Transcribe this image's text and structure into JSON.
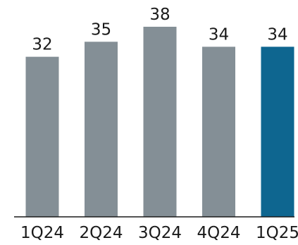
{
  "chart_data": {
    "type": "bar",
    "categories": [
      "1Q24",
      "2Q24",
      "3Q24",
      "4Q24",
      "1Q25"
    ],
    "values": [
      32,
      35,
      38,
      34,
      34
    ],
    "data_labels": [
      "32",
      "35",
      "38",
      "34",
      "34"
    ],
    "title": "",
    "xlabel": "",
    "ylabel": "",
    "ylim": [
      0,
      38
    ],
    "grid": false,
    "legend": "none",
    "colors": {
      "default_bar": "#848f96",
      "highlight_bar": "#0e6690",
      "axis": "#1a1a1a"
    },
    "highlight_index": 4
  }
}
